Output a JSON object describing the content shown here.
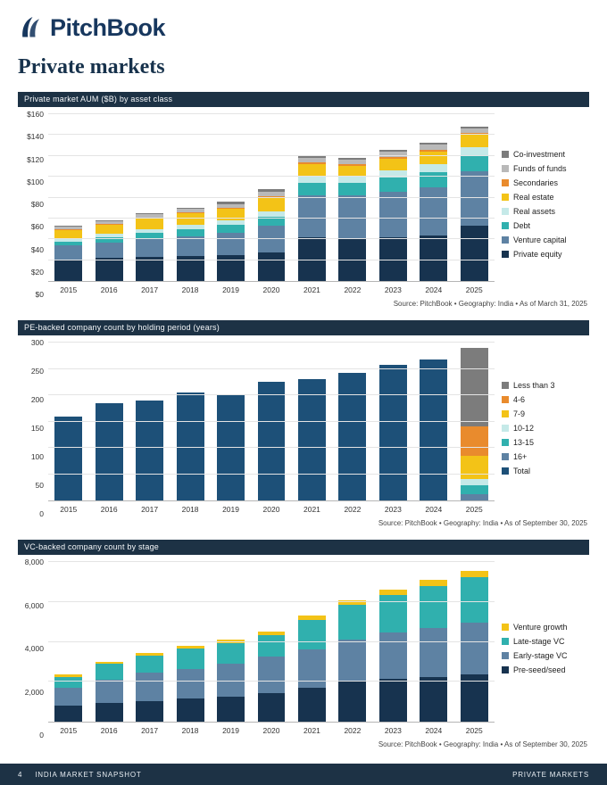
{
  "header": {
    "brand": "PitchBook"
  },
  "page": {
    "title": "Private markets"
  },
  "footer": {
    "page_number": "4",
    "left_text": "INDIA MARKET SNAPSHOT",
    "right_text": "PRIVATE MARKETS"
  },
  "colors": {
    "navy": "#17334f",
    "steel_blue": "#5e82a3",
    "teal": "#30b0ae",
    "pale_cyan": "#c5e9e8",
    "yellow": "#f3c317",
    "orange": "#e98b2d",
    "light_gray": "#b9b9b9",
    "dark_gray": "#7c7c7c",
    "header_bar": "#1d3245",
    "pe_total_blue": "#1d5078"
  },
  "chart_data": [
    {
      "type": "bar",
      "title": "Private market AUM ($B) by asset class",
      "source": "Source: PitchBook • Geography: India • As of March 31, 2025",
      "categories": [
        "2015",
        "2016",
        "2017",
        "2018",
        "2019",
        "2020",
        "2021",
        "2022",
        "2023",
        "2024",
        "2025"
      ],
      "ylim": [
        0,
        160
      ],
      "yticks": [
        {
          "label": "$0",
          "value": 0
        },
        {
          "label": "$20",
          "value": 20
        },
        {
          "label": "$40",
          "value": 40
        },
        {
          "label": "$60",
          "value": 60
        },
        {
          "label": "$80",
          "value": 80
        },
        {
          "label": "$100",
          "value": 100
        },
        {
          "label": "$120",
          "value": 120
        },
        {
          "label": "$140",
          "value": 140
        },
        {
          "label": "$160",
          "value": 160
        }
      ],
      "series": [
        {
          "name": "Private equity",
          "color": "#17334f",
          "values": [
            20,
            22,
            23,
            24,
            25,
            27,
            42,
            40,
            42,
            44,
            53
          ]
        },
        {
          "name": "Venture capital",
          "color": "#5e82a3",
          "values": [
            14,
            15,
            17,
            19,
            21,
            26,
            40,
            42,
            44,
            46,
            52
          ]
        },
        {
          "name": "Debt",
          "color": "#30b0ae",
          "values": [
            4,
            5,
            6,
            7,
            8,
            9,
            12,
            12,
            13,
            14,
            15
          ]
        },
        {
          "name": "Real assets",
          "color": "#c5e9e8",
          "values": [
            3,
            3,
            4,
            4,
            4,
            5,
            6,
            6,
            7,
            8,
            8
          ]
        },
        {
          "name": "Real estate",
          "color": "#f3c317",
          "values": [
            8,
            9,
            10,
            11,
            11,
            13,
            12,
            10,
            11,
            12,
            12
          ]
        },
        {
          "name": "Secondaries",
          "color": "#e98b2d",
          "values": [
            1,
            1,
            1,
            1,
            1,
            1,
            2,
            2,
            2,
            2,
            2
          ]
        },
        {
          "name": "Funds of funds",
          "color": "#b9b9b9",
          "values": [
            2,
            2,
            3,
            3,
            4,
            5,
            4,
            4,
            5,
            5,
            4
          ]
        },
        {
          "name": "Co-investment",
          "color": "#7c7c7c",
          "values": [
            1,
            1,
            1,
            1,
            2,
            2,
            2,
            2,
            2,
            2,
            2
          ]
        }
      ],
      "legend": [
        {
          "label": "Co-investment",
          "color": "#7c7c7c"
        },
        {
          "label": "Funds of funds",
          "color": "#b9b9b9"
        },
        {
          "label": "Secondaries",
          "color": "#e98b2d"
        },
        {
          "label": "Real estate",
          "color": "#f3c317"
        },
        {
          "label": "Real assets",
          "color": "#c5e9e8"
        },
        {
          "label": "Debt",
          "color": "#30b0ae"
        },
        {
          "label": "Venture capital",
          "color": "#5e82a3"
        },
        {
          "label": "Private equity",
          "color": "#17334f"
        }
      ]
    },
    {
      "type": "bar",
      "title": "PE-backed company count by holding period (years)",
      "source": "Source: PitchBook • Geography: India • As of September 30, 2025",
      "categories": [
        "2015",
        "2016",
        "2017",
        "2018",
        "2019",
        "2020",
        "2021",
        "2022",
        "2023",
        "2024",
        "2025"
      ],
      "ylim": [
        0,
        300
      ],
      "yticks": [
        {
          "label": "0",
          "value": 0
        },
        {
          "label": "50",
          "value": 50
        },
        {
          "label": "100",
          "value": 100
        },
        {
          "label": "150",
          "value": 150
        },
        {
          "label": "200",
          "value": 200
        },
        {
          "label": "250",
          "value": 250
        },
        {
          "label": "300",
          "value": 300
        }
      ],
      "series": [
        {
          "name": "Total",
          "color": "#1d5078",
          "values": [
            160,
            185,
            190,
            205,
            202,
            225,
            230,
            243,
            257,
            267,
            0
          ]
        },
        {
          "name": "16+",
          "color": "#5e82a3",
          "values": [
            0,
            0,
            0,
            0,
            0,
            0,
            0,
            0,
            0,
            0,
            12
          ]
        },
        {
          "name": "13-15",
          "color": "#30b0ae",
          "values": [
            0,
            0,
            0,
            0,
            0,
            0,
            0,
            0,
            0,
            0,
            16
          ]
        },
        {
          "name": "10-12",
          "color": "#c5e9e8",
          "values": [
            0,
            0,
            0,
            0,
            0,
            0,
            0,
            0,
            0,
            0,
            12
          ]
        },
        {
          "name": "7-9",
          "color": "#f3c317",
          "values": [
            0,
            0,
            0,
            0,
            0,
            0,
            0,
            0,
            0,
            0,
            45
          ]
        },
        {
          "name": "4-6",
          "color": "#e98b2d",
          "values": [
            0,
            0,
            0,
            0,
            0,
            0,
            0,
            0,
            0,
            0,
            55
          ]
        },
        {
          "name": "Less than 3",
          "color": "#7c7c7c",
          "values": [
            0,
            0,
            0,
            0,
            0,
            0,
            0,
            0,
            0,
            0,
            150
          ]
        }
      ],
      "legend": [
        {
          "label": "Less than 3",
          "color": "#7c7c7c"
        },
        {
          "label": "4-6",
          "color": "#e98b2d"
        },
        {
          "label": "7-9",
          "color": "#f3c317"
        },
        {
          "label": "10-12",
          "color": "#c5e9e8"
        },
        {
          "label": "13-15",
          "color": "#30b0ae"
        },
        {
          "label": "16+",
          "color": "#5e82a3"
        },
        {
          "label": "Total",
          "color": "#1d5078"
        }
      ]
    },
    {
      "type": "bar",
      "title": "VC-backed company count by stage",
      "source": "Source: PitchBook • Geography: India • As of September 30, 2025",
      "categories": [
        "2015",
        "2016",
        "2017",
        "2018",
        "2019",
        "2020",
        "2021",
        "2022",
        "2023",
        "2024",
        "2025"
      ],
      "ylim": [
        0,
        8000
      ],
      "yticks": [
        {
          "label": "0",
          "value": 0
        },
        {
          "label": "2,000",
          "value": 2000
        },
        {
          "label": "4,000",
          "value": 4000
        },
        {
          "label": "6,000",
          "value": 6000
        },
        {
          "label": "8,000",
          "value": 8000
        }
      ],
      "series": [
        {
          "name": "Pre-seed/seed",
          "color": "#17334f",
          "values": [
            800,
            950,
            1050,
            1150,
            1250,
            1450,
            1700,
            2000,
            2150,
            2250,
            2350
          ]
        },
        {
          "name": "Early-stage VC",
          "color": "#5e82a3",
          "values": [
            900,
            1150,
            1400,
            1500,
            1650,
            1800,
            1900,
            2100,
            2300,
            2450,
            2600
          ]
        },
        {
          "name": "Late-stage VC",
          "color": "#30b0ae",
          "values": [
            550,
            800,
            850,
            1000,
            1050,
            1100,
            1500,
            1750,
            1900,
            2100,
            2300
          ]
        },
        {
          "name": "Venture growth",
          "color": "#f3c317",
          "values": [
            100,
            100,
            150,
            150,
            150,
            150,
            200,
            250,
            250,
            300,
            300
          ]
        }
      ],
      "legend": [
        {
          "label": "Venture growth",
          "color": "#f3c317"
        },
        {
          "label": "Late-stage VC",
          "color": "#30b0ae"
        },
        {
          "label": "Early-stage VC",
          "color": "#5e82a3"
        },
        {
          "label": "Pre-seed/seed",
          "color": "#17334f"
        }
      ]
    }
  ]
}
